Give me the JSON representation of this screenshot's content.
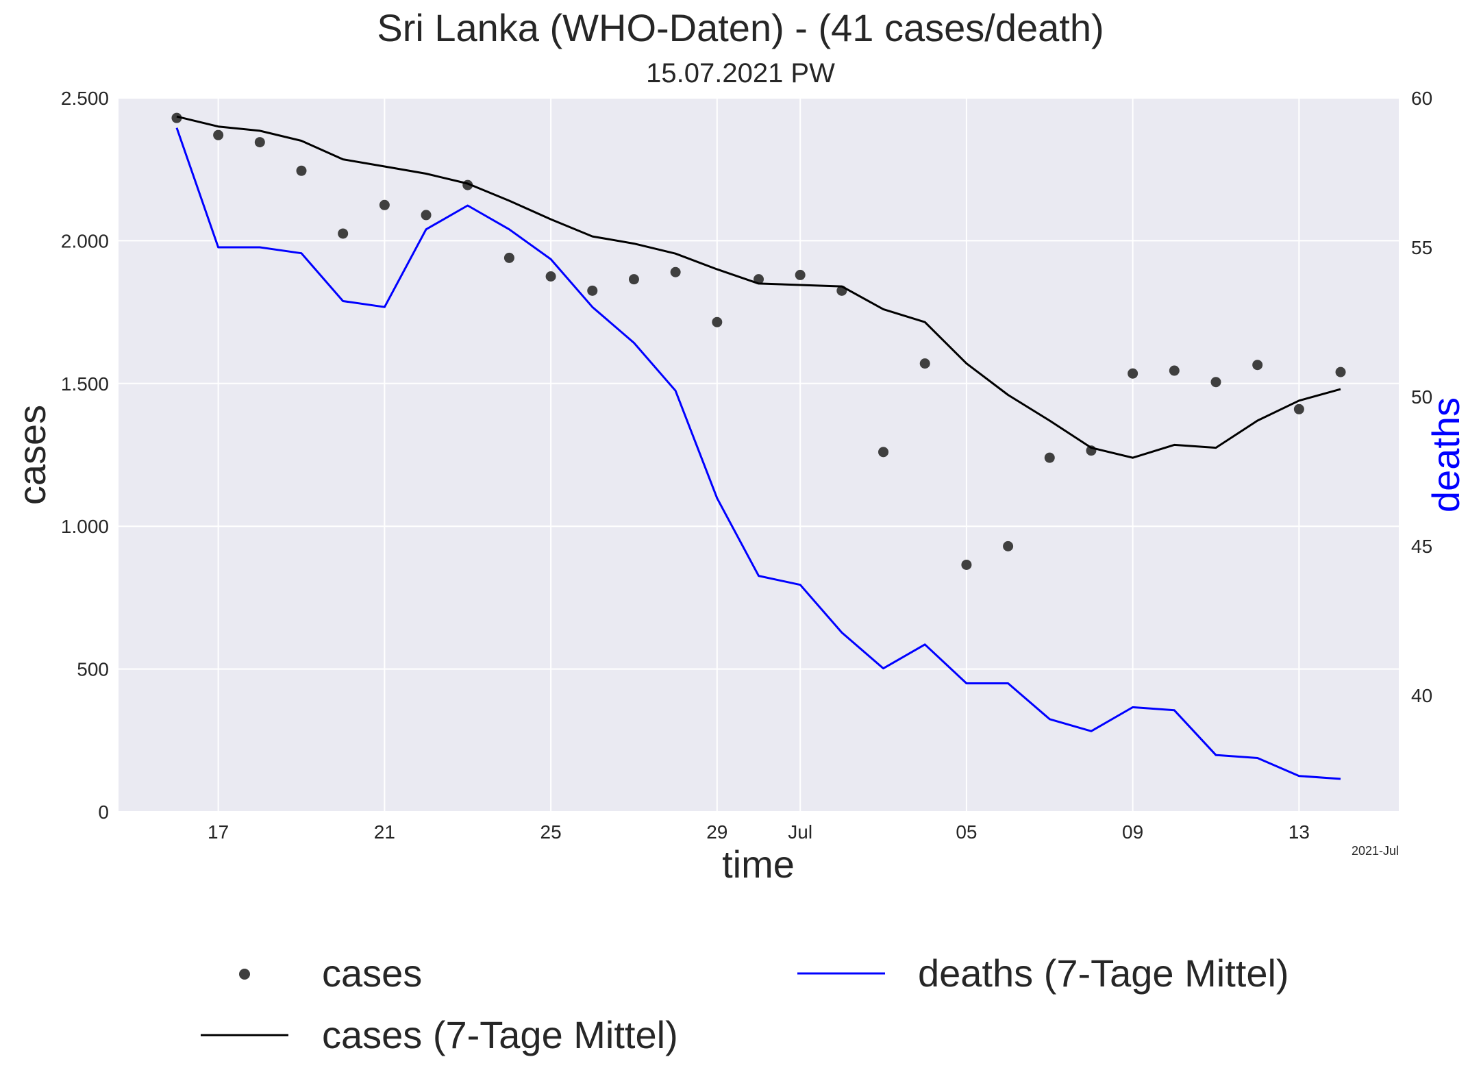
{
  "chart_data": {
    "type": "line",
    "title": "Sri Lanka (WHO-Daten) - (41 cases/death)",
    "subtitle": "15.07.2021 PW",
    "xlabel": "time",
    "ylabel": "cases",
    "y2label": "deaths",
    "x_offset_label": "2021-Jul",
    "x_dates": [
      "2021-06-16",
      "2021-06-17",
      "2021-06-18",
      "2021-06-19",
      "2021-06-20",
      "2021-06-21",
      "2021-06-22",
      "2021-06-23",
      "2021-06-24",
      "2021-06-25",
      "2021-06-26",
      "2021-06-27",
      "2021-06-28",
      "2021-06-29",
      "2021-06-30",
      "2021-07-01",
      "2021-07-02",
      "2021-07-03",
      "2021-07-04",
      "2021-07-05",
      "2021-07-06",
      "2021-07-07",
      "2021-07-08",
      "2021-07-09",
      "2021-07-10",
      "2021-07-11",
      "2021-07-12",
      "2021-07-13",
      "2021-07-14"
    ],
    "xlim": [
      -1.4,
      29.4
    ],
    "ylim": [
      0,
      2500
    ],
    "y2lim": [
      36.1,
      60
    ],
    "grid": true,
    "legend_location": "bottom",
    "x_ticks": [
      {
        "pos": 1,
        "label": "17"
      },
      {
        "pos": 5,
        "label": "21"
      },
      {
        "pos": 9,
        "label": "25"
      },
      {
        "pos": 13,
        "label": "29"
      },
      {
        "pos": 15,
        "label": "Jul"
      },
      {
        "pos": 19,
        "label": "05"
      },
      {
        "pos": 23,
        "label": "09"
      },
      {
        "pos": 27,
        "label": "13"
      }
    ],
    "y_ticks": [
      {
        "value": 0,
        "label": "0"
      },
      {
        "value": 500,
        "label": "500"
      },
      {
        "value": 1000,
        "label": "1.000"
      },
      {
        "value": 1500,
        "label": "1.500"
      },
      {
        "value": 2000,
        "label": "2.000"
      },
      {
        "value": 2500,
        "label": "2.500"
      }
    ],
    "y2_ticks": [
      {
        "value": 40,
        "label": "40"
      },
      {
        "value": 45,
        "label": "45"
      },
      {
        "value": 50,
        "label": "50"
      },
      {
        "value": 55,
        "label": "55"
      },
      {
        "value": 60,
        "label": "60"
      }
    ],
    "series": [
      {
        "name": "cases",
        "kind": "scatter",
        "axis": "left",
        "color": "#3f3f3f",
        "values": [
          2430,
          2370,
          2345,
          2245,
          2025,
          2125,
          2090,
          2195,
          1940,
          1875,
          1825,
          1865,
          1890,
          1715,
          1865,
          1880,
          1825,
          1260,
          1570,
          865,
          930,
          1240,
          1265,
          1535,
          1545,
          1505,
          1565,
          1410,
          1540
        ]
      },
      {
        "name": "cases (7-Tage Mittel)",
        "kind": "line",
        "axis": "left",
        "color": "#000000",
        "values": [
          2435,
          2400,
          2385,
          2350,
          2285,
          2260,
          2235,
          2200,
          2140,
          2075,
          2015,
          1990,
          1955,
          1900,
          1850,
          1845,
          1840,
          1760,
          1715,
          1570,
          1460,
          1370,
          1275,
          1240,
          1285,
          1275,
          1370,
          1440,
          1480
        ]
      },
      {
        "name": "deaths (7-Tage Mittel)",
        "kind": "line",
        "axis": "right",
        "color": "#0000ff",
        "values": [
          59.0,
          55.0,
          55.0,
          54.8,
          53.2,
          53.0,
          55.6,
          56.4,
          55.6,
          54.6,
          53.0,
          51.8,
          50.2,
          46.6,
          44.0,
          43.7,
          42.1,
          40.9,
          41.7,
          40.4,
          40.4,
          39.2,
          38.8,
          39.6,
          39.5,
          38.0,
          37.9,
          37.3,
          37.2
        ]
      }
    ]
  }
}
